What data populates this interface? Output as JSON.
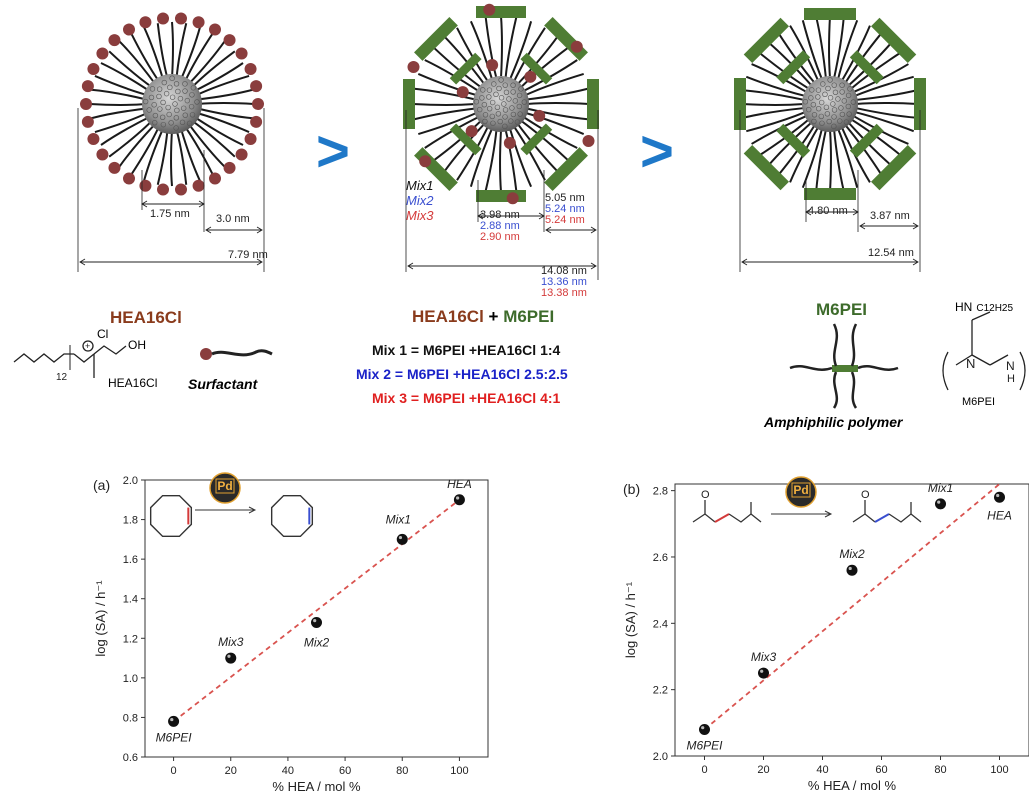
{
  "schematic": {
    "panel1": {
      "dim_inner": "1.75 nm",
      "dim_shell": "3.0 nm",
      "dim_total": "7.79 nm"
    },
    "panel2": {
      "mix_labels": [
        "Mix1",
        "Mix2",
        "Mix3"
      ],
      "dim_inner": [
        "3.98 nm",
        "2.88 nm",
        "2.90 nm"
      ],
      "dim_shell": [
        "5.05 nm",
        "5.24 nm",
        "5.24 nm"
      ],
      "dim_total": [
        "14.08 nm",
        "13.36 nm",
        "13.38 nm"
      ]
    },
    "panel3": {
      "dim_inner": "4.80 nm",
      "dim_shell": "3.87 nm",
      "dim_total": "12.54 nm"
    },
    "arrow_glyph": ">"
  },
  "legend": {
    "surfactant_name": "HEA16Cl",
    "surfactant_struct_label": "HEA16Cl",
    "surfactant_caption": "Surfactant",
    "chloride": "Cl",
    "mix_title_part1": "HEA16Cl",
    "mix_title_plus": " + ",
    "mix_title_part2": "M6PEI",
    "mix1": "Mix 1 = M6PEI +HEA16Cl 1:4",
    "mix2": "Mix 2 = M6PEI +HEA16Cl 2.5:2.5",
    "mix3": "Mix 3 = M6PEI +HEA16Cl 4:1",
    "polymer_name": "M6PEI",
    "polymer_caption": "Amphiphilic polymer",
    "polymer_struct_label": "M6PEI",
    "polymer_chain": "HN",
    "polymer_chain_sub": "C12H25"
  },
  "chart_data": [
    {
      "type": "scatter",
      "panel_label": "(a)",
      "xlabel": "% HEA / mol %",
      "ylabel": "log (SA) / h⁻¹",
      "xlim": [
        -10,
        110
      ],
      "ylim": [
        0.6,
        2.0
      ],
      "xticks": [
        0,
        20,
        40,
        60,
        80,
        100
      ],
      "yticks": [
        0.6,
        0.8,
        1.0,
        1.2,
        1.4,
        1.6,
        1.8,
        2.0
      ],
      "ytick_labels": [
        "0.6",
        "0.8",
        "1.0",
        "1.2",
        "1.4",
        "1.6",
        "1.8",
        "2.0"
      ],
      "points": [
        {
          "label": "M6PEI",
          "x": 0,
          "y": 0.78
        },
        {
          "label": "Mix3",
          "x": 20,
          "y": 1.1
        },
        {
          "label": "Mix2",
          "x": 50,
          "y": 1.28
        },
        {
          "label": "Mix1",
          "x": 80,
          "y": 1.7
        },
        {
          "label": "HEA",
          "x": 100,
          "y": 1.9
        }
      ],
      "trend": [
        [
          0,
          0.78
        ],
        [
          100,
          1.9
        ]
      ],
      "catalyst_badge": "Pd",
      "colors": {
        "marker": "#111111",
        "trend": "#d9534f"
      }
    },
    {
      "type": "scatter",
      "panel_label": "(b)",
      "xlabel": "% HEA / mol %",
      "ylabel": "log (SA) / h⁻¹",
      "xlim": [
        -10,
        110
      ],
      "ylim": [
        2.0,
        2.82
      ],
      "xticks": [
        0,
        20,
        40,
        60,
        80,
        100
      ],
      "yticks": [
        2.0,
        2.2,
        2.4,
        2.6,
        2.8
      ],
      "ytick_labels": [
        "2.0",
        "2.2",
        "2.4",
        "2.6",
        "2.8"
      ],
      "points": [
        {
          "label": "M6PEI",
          "x": 0,
          "y": 2.08
        },
        {
          "label": "Mix3",
          "x": 20,
          "y": 2.25
        },
        {
          "label": "Mix2",
          "x": 50,
          "y": 2.56
        },
        {
          "label": "Mix1",
          "x": 80,
          "y": 2.76
        },
        {
          "label": "HEA",
          "x": 100,
          "y": 2.78
        }
      ],
      "trend": [
        [
          0,
          2.08
        ],
        [
          100,
          2.82
        ]
      ],
      "catalyst_badge": "Pd",
      "colors": {
        "marker": "#111111",
        "trend": "#d9534f"
      }
    }
  ]
}
